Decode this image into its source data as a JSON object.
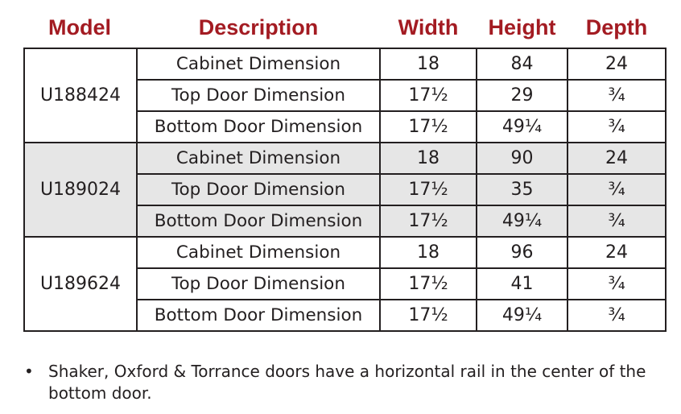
{
  "headers": {
    "model": "Model",
    "description": "Description",
    "width": "Width",
    "height": "Height",
    "depth": "Depth"
  },
  "colors": {
    "header": "#a31b22",
    "shaded_group": "#e6e6e6"
  },
  "groups": [
    {
      "model": "U188424",
      "rows": [
        {
          "description": "Cabinet Dimension",
          "width": "18",
          "height": "84",
          "depth": "24"
        },
        {
          "description": "Top Door Dimension",
          "width": "17½",
          "height": "29",
          "depth": "¾"
        },
        {
          "description": "Bottom Door Dimension",
          "width": "17½",
          "height": "49¼",
          "depth": "¾"
        }
      ]
    },
    {
      "model": "U189024",
      "rows": [
        {
          "description": "Cabinet Dimension",
          "width": "18",
          "height": "90",
          "depth": "24"
        },
        {
          "description": "Top Door Dimension",
          "width": "17½",
          "height": "35",
          "depth": "¾"
        },
        {
          "description": "Bottom Door Dimension",
          "width": "17½",
          "height": "49¼",
          "depth": "¾"
        }
      ]
    },
    {
      "model": "U189624",
      "rows": [
        {
          "description": "Cabinet Dimension",
          "width": "18",
          "height": "96",
          "depth": "24"
        },
        {
          "description": "Top Door Dimension",
          "width": "17½",
          "height": "41",
          "depth": "¾"
        },
        {
          "description": "Bottom Door Dimension",
          "width": "17½",
          "height": "49¼",
          "depth": "¾"
        }
      ]
    }
  ],
  "note": {
    "bullet": "•",
    "text": "Shaker, Oxford & Torrance doors have a horizontal rail in the center of the bottom door."
  }
}
